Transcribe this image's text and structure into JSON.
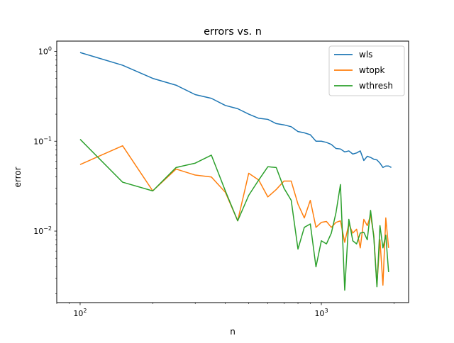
{
  "chart_data": {
    "type": "line",
    "title": "errors vs. n",
    "xlabel": "n",
    "ylabel": "error",
    "xscale": "log",
    "yscale": "log",
    "xlim": [
      80,
      2300
    ],
    "ylim": [
      0.0016,
      1.3
    ],
    "x_ticks": [
      {
        "value": 100,
        "base": "10",
        "exp": "2"
      },
      {
        "value": 1000,
        "base": "10",
        "exp": "3"
      }
    ],
    "y_ticks": [
      {
        "value": 0.01,
        "base": "10",
        "exp": "−2"
      },
      {
        "value": 0.1,
        "base": "10",
        "exp": "−1"
      },
      {
        "value": 1,
        "base": "10",
        "exp": "0"
      }
    ],
    "grid": false,
    "legend": "top-right",
    "series": [
      {
        "name": "wls",
        "color": "#1f77b4",
        "points": [
          [
            100,
            0.97
          ],
          [
            150,
            0.7
          ],
          [
            200,
            0.5
          ],
          [
            250,
            0.42
          ],
          [
            300,
            0.33
          ],
          [
            350,
            0.3
          ],
          [
            400,
            0.25
          ],
          [
            450,
            0.23
          ],
          [
            500,
            0.2
          ],
          [
            550,
            0.18
          ],
          [
            600,
            0.175
          ],
          [
            650,
            0.157
          ],
          [
            700,
            0.152
          ],
          [
            750,
            0.145
          ],
          [
            800,
            0.128
          ],
          [
            850,
            0.124
          ],
          [
            900,
            0.118
          ],
          [
            950,
            0.1
          ],
          [
            1000,
            0.1
          ],
          [
            1050,
            0.097
          ],
          [
            1100,
            0.092
          ],
          [
            1150,
            0.083
          ],
          [
            1200,
            0.082
          ],
          [
            1250,
            0.076
          ],
          [
            1300,
            0.078
          ],
          [
            1350,
            0.072
          ],
          [
            1400,
            0.074
          ],
          [
            1450,
            0.078
          ],
          [
            1500,
            0.061
          ],
          [
            1550,
            0.068
          ],
          [
            1600,
            0.066
          ],
          [
            1650,
            0.063
          ],
          [
            1700,
            0.062
          ],
          [
            1750,
            0.057
          ],
          [
            1800,
            0.051
          ],
          [
            1850,
            0.053
          ],
          [
            1900,
            0.053
          ],
          [
            1950,
            0.051
          ]
        ]
      },
      {
        "name": "wtopk",
        "color": "#ff7f0e",
        "points": [
          [
            100,
            0.055
          ],
          [
            150,
            0.089
          ],
          [
            200,
            0.028
          ],
          [
            250,
            0.049
          ],
          [
            300,
            0.042
          ],
          [
            350,
            0.04
          ],
          [
            400,
            0.027
          ],
          [
            450,
            0.013
          ],
          [
            500,
            0.044
          ],
          [
            550,
            0.037
          ],
          [
            600,
            0.024
          ],
          [
            650,
            0.029
          ],
          [
            700,
            0.036
          ],
          [
            750,
            0.036
          ],
          [
            800,
            0.02
          ],
          [
            850,
            0.014
          ],
          [
            900,
            0.022
          ],
          [
            950,
            0.011
          ],
          [
            1000,
            0.0125
          ],
          [
            1050,
            0.0128
          ],
          [
            1100,
            0.011
          ],
          [
            1150,
            0.0125
          ],
          [
            1200,
            0.013
          ],
          [
            1250,
            0.0075
          ],
          [
            1300,
            0.012
          ],
          [
            1350,
            0.0095
          ],
          [
            1400,
            0.0105
          ],
          [
            1450,
            0.0065
          ],
          [
            1500,
            0.0135
          ],
          [
            1550,
            0.0115
          ],
          [
            1600,
            0.015
          ],
          [
            1650,
            0.009
          ],
          [
            1700,
            0.0025
          ],
          [
            1750,
            0.008
          ],
          [
            1800,
            0.0025
          ],
          [
            1850,
            0.014
          ],
          [
            1900,
            0.0065
          ]
        ]
      },
      {
        "name": "wthresh",
        "color": "#2ca02c",
        "points": [
          [
            100,
            0.105
          ],
          [
            150,
            0.035
          ],
          [
            200,
            0.028
          ],
          [
            250,
            0.051
          ],
          [
            300,
            0.057
          ],
          [
            350,
            0.07
          ],
          [
            400,
            0.028
          ],
          [
            450,
            0.013
          ],
          [
            500,
            0.025
          ],
          [
            550,
            0.037
          ],
          [
            600,
            0.052
          ],
          [
            650,
            0.051
          ],
          [
            700,
            0.03
          ],
          [
            750,
            0.022
          ],
          [
            800,
            0.0063
          ],
          [
            850,
            0.011
          ],
          [
            900,
            0.012
          ],
          [
            950,
            0.004
          ],
          [
            1000,
            0.0078
          ],
          [
            1050,
            0.0072
          ],
          [
            1100,
            0.0095
          ],
          [
            1150,
            0.016
          ],
          [
            1200,
            0.033
          ],
          [
            1250,
            0.0022
          ],
          [
            1300,
            0.0135
          ],
          [
            1350,
            0.0078
          ],
          [
            1400,
            0.0072
          ],
          [
            1450,
            0.0095
          ],
          [
            1500,
            0.0097
          ],
          [
            1550,
            0.008
          ],
          [
            1600,
            0.017
          ],
          [
            1650,
            0.0085
          ],
          [
            1700,
            0.0024
          ],
          [
            1750,
            0.0115
          ],
          [
            1800,
            0.0065
          ],
          [
            1850,
            0.009
          ],
          [
            1900,
            0.0035
          ]
        ]
      }
    ]
  }
}
